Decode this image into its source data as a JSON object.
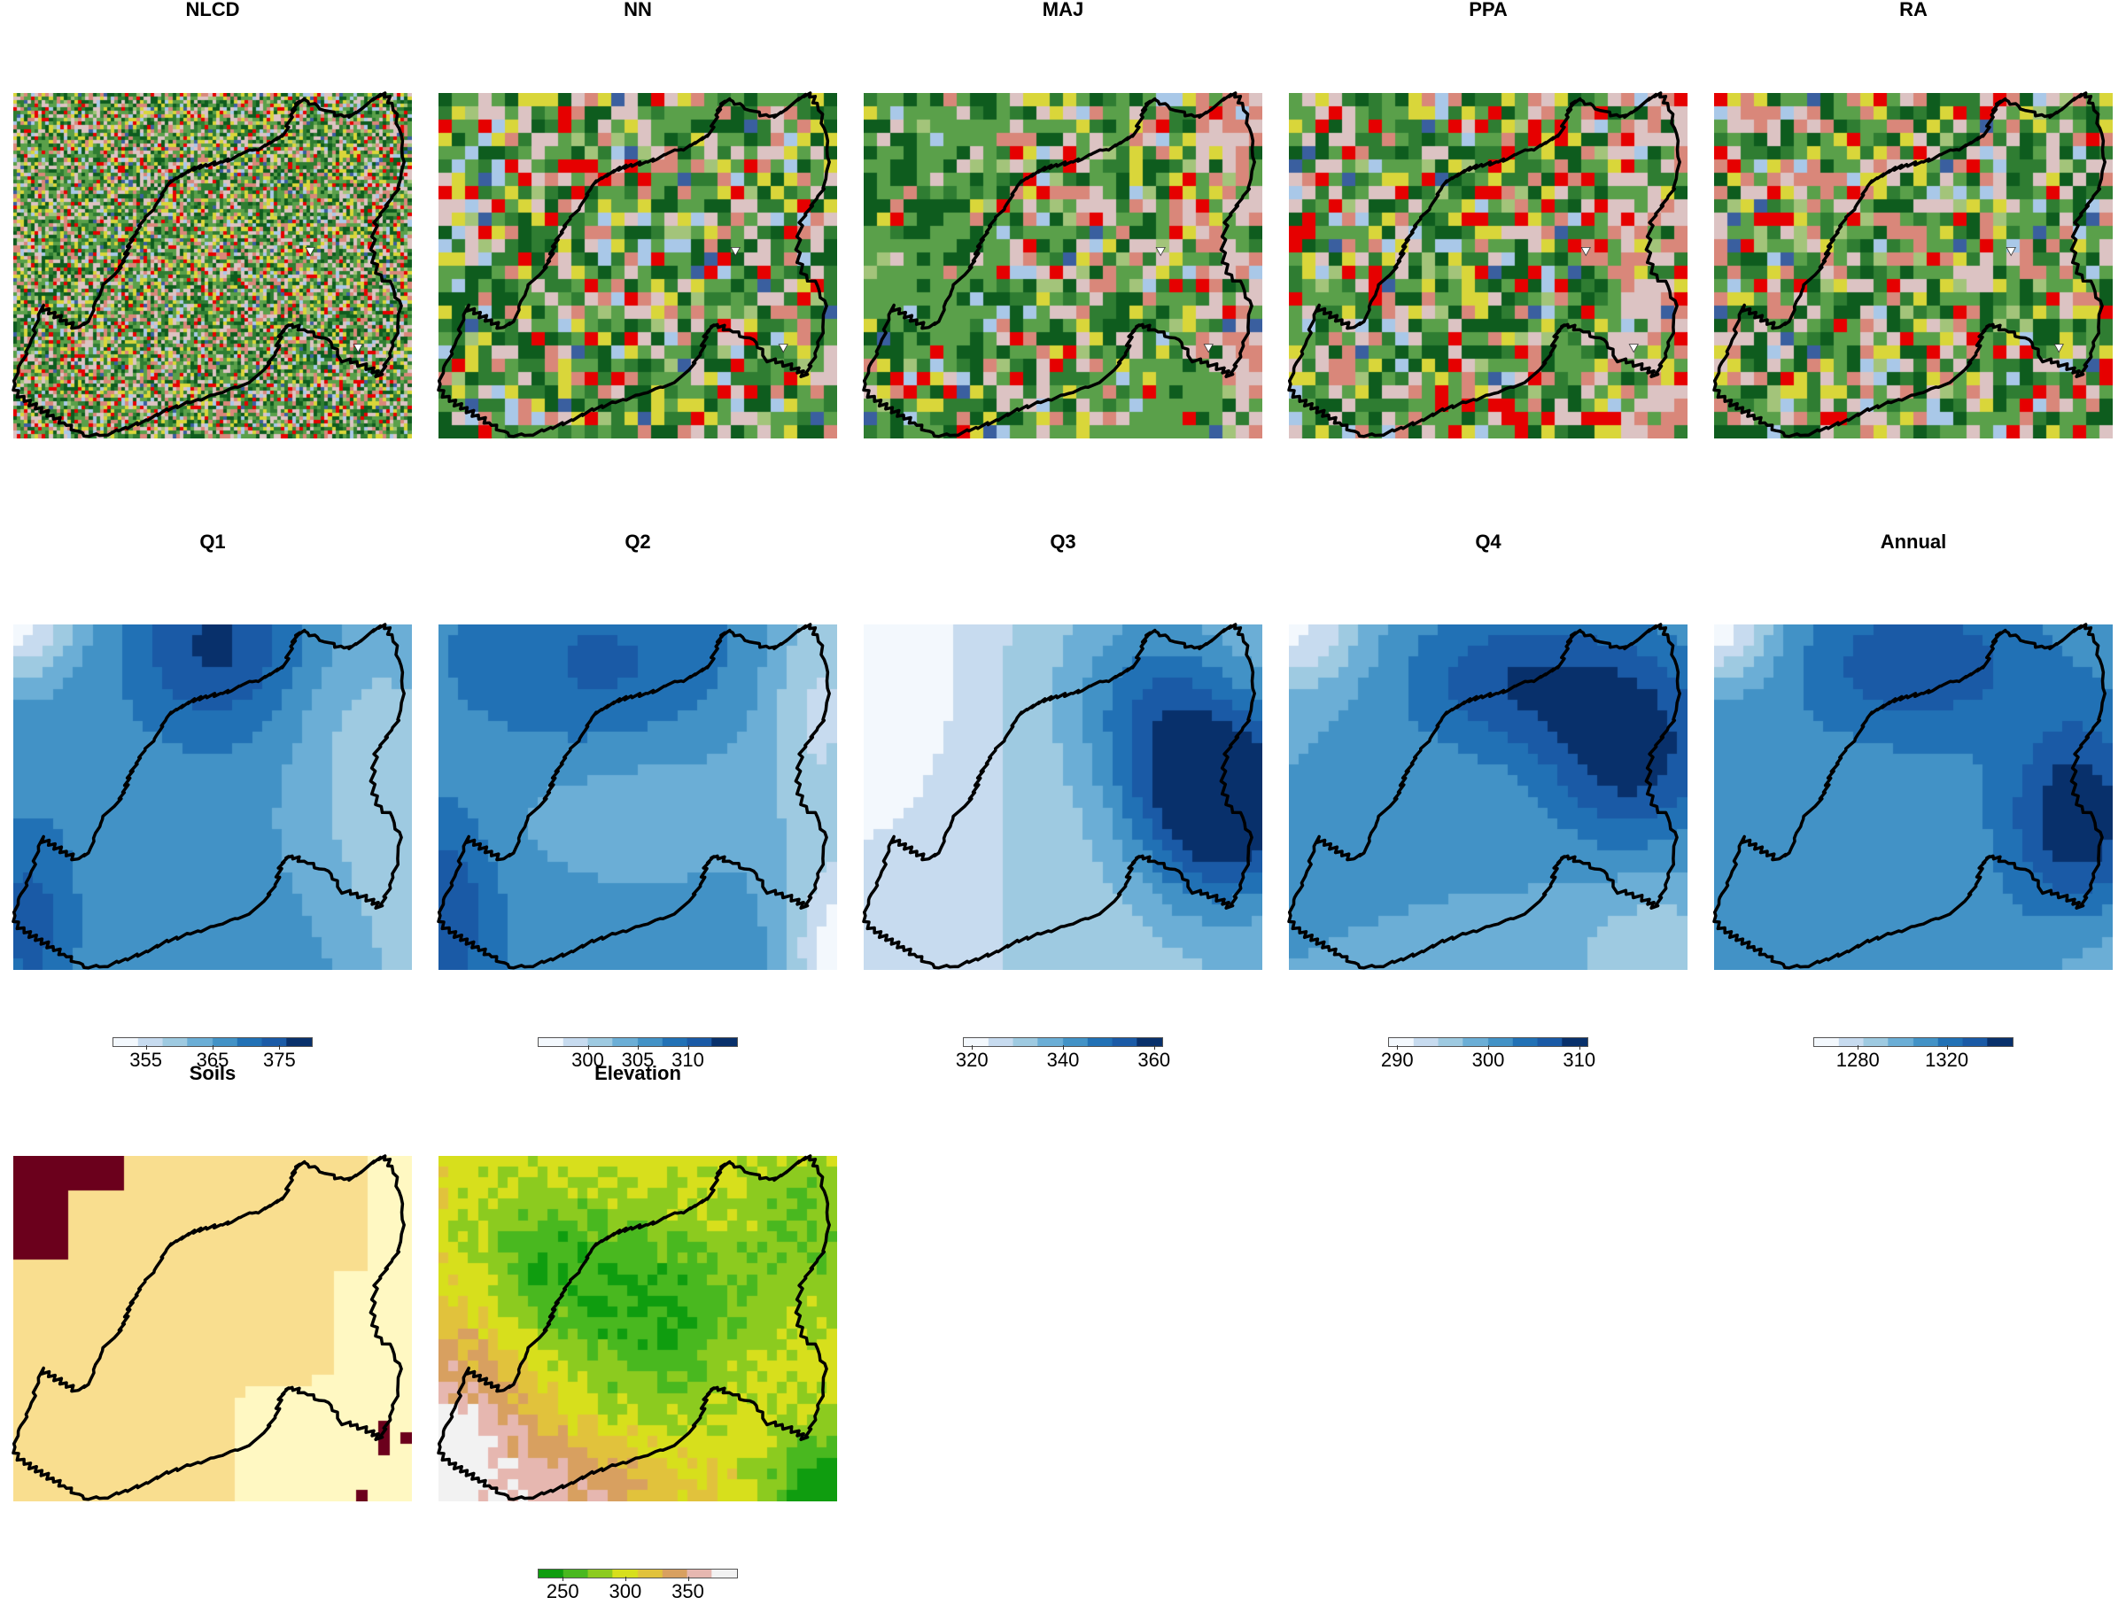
{
  "panels": [
    {
      "id": "nlcd",
      "title": "NLCD",
      "kind": "landcover",
      "res": 110,
      "seed": 1,
      "gauges": true
    },
    {
      "id": "nn",
      "title": "NN",
      "kind": "landcover",
      "res": 30,
      "seed": 2,
      "gauges": true
    },
    {
      "id": "maj",
      "title": "MAJ",
      "kind": "landcover",
      "res": 30,
      "seed": 3,
      "gauges": true
    },
    {
      "id": "ppa",
      "title": "PPA",
      "kind": "landcover",
      "res": 30,
      "seed": 4,
      "gauges": true
    },
    {
      "id": "ra",
      "title": "RA",
      "kind": "landcover",
      "res": 30,
      "seed": 5,
      "gauges": true
    },
    {
      "id": "q1",
      "title": "Q1",
      "kind": "precip",
      "seed": 6,
      "legend": {
        "min": 350,
        "max": 380,
        "ticks": [
          "355",
          "365",
          "375"
        ],
        "tickValues": [
          355,
          365,
          375
        ]
      }
    },
    {
      "id": "q2",
      "title": "Q2",
      "kind": "precip",
      "seed": 7,
      "legend": {
        "min": 295,
        "max": 315,
        "ticks": [
          "300",
          "305",
          "310"
        ],
        "tickValues": [
          300,
          305,
          310
        ]
      }
    },
    {
      "id": "q3",
      "title": "Q3",
      "kind": "precip",
      "seed": 8,
      "legend": {
        "min": 318,
        "max": 362,
        "ticks": [
          "320",
          "340",
          "360"
        ],
        "tickValues": [
          320,
          340,
          360
        ]
      }
    },
    {
      "id": "q4",
      "title": "Q4",
      "kind": "precip",
      "seed": 9,
      "legend": {
        "min": 289,
        "max": 311,
        "ticks": [
          "290",
          "300",
          "310"
        ],
        "tickValues": [
          290,
          300,
          310
        ]
      }
    },
    {
      "id": "annual",
      "title": "Annual",
      "kind": "precip",
      "seed": 10,
      "legend": {
        "min": 1260,
        "max": 1350,
        "ticks": [
          "1280",
          "1320"
        ],
        "tickValues": [
          1280,
          1320
        ]
      }
    },
    {
      "id": "soils",
      "title": "Soils",
      "kind": "soils",
      "seed": 11
    },
    {
      "id": "elev",
      "title": "Elevation",
      "kind": "elevation",
      "seed": 12,
      "legend": {
        "min": 230,
        "max": 390,
        "ticks": [
          "250",
          "300",
          "350"
        ],
        "tickValues": [
          250,
          300,
          350
        ]
      }
    }
  ],
  "colors": {
    "landcover": [
      "#5aa04a",
      "#2f7d32",
      "#0e5c1e",
      "#d9d63a",
      "#dcc3c3",
      "#d9877a",
      "#e60000",
      "#a9c8e8",
      "#a3c47a",
      "#3a5f9f"
    ],
    "blues": [
      "#f3f8fd",
      "#c7dbef",
      "#9ecae1",
      "#6baed6",
      "#4292c6",
      "#2171b5",
      "#1a5aa6",
      "#08306b"
    ],
    "elevation": [
      "#0f9d0f",
      "#49b81f",
      "#8ccb1f",
      "#d7df1c",
      "#e1c23c",
      "#d8a060",
      "#e6b7b0",
      "#f2f2f2"
    ],
    "soils": [
      "#fff8c2",
      "#f9de8f",
      "#6b001c"
    ]
  }
}
